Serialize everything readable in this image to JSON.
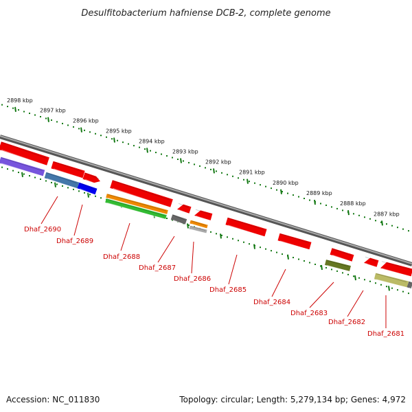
{
  "title": "Desulfitobacterium hafniense DCB-2, complete genome",
  "footer": {
    "accession": "Accession: NC_011830",
    "topology": "Topology: circular; Length: 5,279,134 bp; Genes: 4,972"
  },
  "scale": {
    "ticks": [
      "2898 kbp",
      "2897 kbp",
      "2896 kbp",
      "2895 kbp",
      "2894 kbp",
      "2893 kbp",
      "2892 kbp",
      "2891 kbp",
      "2890 kbp",
      "2889 kbp",
      "2888 kbp",
      "2887 kbp"
    ]
  },
  "colors": {
    "red": "#ee0000",
    "purple": "#7755dd",
    "steel_blue": "#4477aa",
    "blue": "#0000ee",
    "orange": "#ee8800",
    "green": "#33bb33",
    "gray": "#666666",
    "light_gray": "#aaaaaa",
    "olive": "#667722",
    "khaki": "#bbbb66",
    "backbone": "#888888",
    "tick_green": "#117711",
    "label_red": "#cc0000"
  },
  "genes": [
    {
      "label": "Dhaf_2690"
    },
    {
      "label": "Dhaf_2689"
    },
    {
      "label": "Dhaf_2688"
    },
    {
      "label": "Dhaf_2687"
    },
    {
      "label": "Dhaf_2686"
    },
    {
      "label": "Dhaf_2685"
    },
    {
      "label": "Dhaf_2684"
    },
    {
      "label": "Dhaf_2683"
    },
    {
      "label": "Dhaf_2682"
    },
    {
      "label": "Dhaf_2681"
    }
  ]
}
